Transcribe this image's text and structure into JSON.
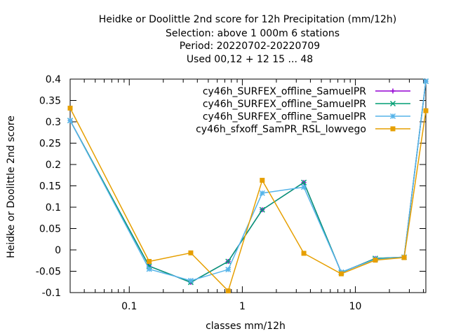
{
  "chart_data": {
    "type": "line",
    "title_lines": [
      "Heidke or Doolittle 2nd score  for 12h Precipitation (mm/12h)",
      "Selection: above 1 000m      6 stations",
      "Period: 20220702-20220709",
      "Used  00,12  + 12 15 ... 48"
    ],
    "xlabel": "classes mm/12h",
    "ylabel": "Heidke or Doolittle 2nd score",
    "x_scale": "log",
    "xlim": [
      0.03,
      42
    ],
    "ylim": [
      -0.1,
      0.4
    ],
    "x_ticks": [
      {
        "value": 0.1,
        "label": "0.1"
      },
      {
        "value": 1,
        "label": "1"
      },
      {
        "value": 10,
        "label": "10"
      }
    ],
    "y_ticks": [
      {
        "value": -0.1,
        "label": "-0.1"
      },
      {
        "value": -0.05,
        "label": "-0.05"
      },
      {
        "value": 0,
        "label": "0"
      },
      {
        "value": 0.05,
        "label": "0.05"
      },
      {
        "value": 0.1,
        "label": "0.1"
      },
      {
        "value": 0.15,
        "label": "0.15"
      },
      {
        "value": 0.2,
        "label": "0.2"
      },
      {
        "value": 0.25,
        "label": "0.25"
      },
      {
        "value": 0.3,
        "label": "0.3"
      },
      {
        "value": 0.35,
        "label": "0.35"
      },
      {
        "value": 0.4,
        "label": "0.4"
      }
    ],
    "grid": false,
    "legend_position": "top-right",
    "x": [
      0.03,
      0.15,
      0.35,
      0.75,
      1.5,
      3.5,
      7.5,
      15,
      27,
      42
    ],
    "series": [
      {
        "name": "cy46h_SURFEX_offline_SamuelPR",
        "color": "#9400d3",
        "marker": "plus",
        "values": [
          0.303,
          -0.038,
          -0.076,
          -0.027,
          0.094,
          0.158,
          -0.053,
          -0.02,
          -0.017,
          0.395
        ]
      },
      {
        "name": "cy46h_SURFEX_offline_SamuelPR",
        "color": "#009e73",
        "marker": "x",
        "values": [
          0.303,
          -0.038,
          -0.076,
          -0.027,
          0.094,
          0.158,
          -0.053,
          -0.02,
          -0.017,
          0.395
        ]
      },
      {
        "name": "cy46h_SURFEX_offline_SamuelPR",
        "color": "#56b4e9",
        "marker": "star",
        "values": [
          0.303,
          -0.045,
          -0.072,
          -0.046,
          0.133,
          0.147,
          -0.052,
          -0.022,
          -0.017,
          0.395
        ]
      },
      {
        "name": "cy46h_sfxoff_SamPR_RSL_lowvego",
        "color": "#e69f00",
        "marker": "square",
        "values": [
          0.332,
          -0.027,
          -0.007,
          -0.096,
          0.163,
          -0.008,
          -0.056,
          -0.024,
          -0.018,
          0.326
        ]
      }
    ]
  }
}
